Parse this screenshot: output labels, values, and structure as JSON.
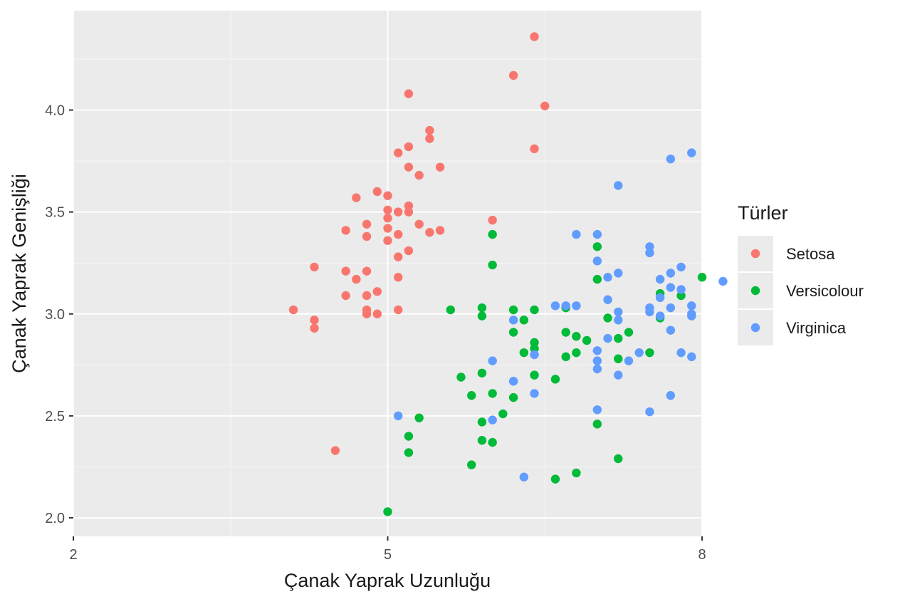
{
  "chart_data": {
    "type": "scatter",
    "xlabel": "Çanak Yaprak Uzunluğu",
    "ylabel": "Çanak Yaprak Genişliği",
    "xlim": [
      2,
      8
    ],
    "ylim": [
      1.95,
      4.45
    ],
    "x_ticks": [
      2,
      5,
      8
    ],
    "x_tick_labels": [
      "2",
      "5",
      "8"
    ],
    "y_ticks": [
      2.0,
      2.5,
      3.0,
      3.5,
      4.0
    ],
    "y_tick_labels": [
      "2.0",
      "2.5",
      "3.0",
      "3.5",
      "4.0"
    ],
    "grid": true,
    "legend": {
      "title": "Türler",
      "position": "right"
    },
    "series": [
      {
        "name": "Setosa",
        "color": "#f8766d",
        "points": [
          [
            6.4,
            4.36
          ],
          [
            6.2,
            4.17
          ],
          [
            5.2,
            4.08
          ],
          [
            6.5,
            4.02
          ],
          [
            5.4,
            3.9
          ],
          [
            5.4,
            3.86
          ],
          [
            6.4,
            3.81
          ],
          [
            5.2,
            3.82
          ],
          [
            5.1,
            3.79
          ],
          [
            5.2,
            3.72
          ],
          [
            5.5,
            3.72
          ],
          [
            5.3,
            3.68
          ],
          [
            4.9,
            3.6
          ],
          [
            5.0,
            3.58
          ],
          [
            4.7,
            3.57
          ],
          [
            5.2,
            3.53
          ],
          [
            5.0,
            3.51
          ],
          [
            5.1,
            3.5
          ],
          [
            5.2,
            3.5
          ],
          [
            5.0,
            3.47
          ],
          [
            6.0,
            3.46
          ],
          [
            5.3,
            3.44
          ],
          [
            4.8,
            3.44
          ],
          [
            5.0,
            3.42
          ],
          [
            4.6,
            3.41
          ],
          [
            5.5,
            3.41
          ],
          [
            5.4,
            3.4
          ],
          [
            5.1,
            3.39
          ],
          [
            4.8,
            3.38
          ],
          [
            5.0,
            3.36
          ],
          [
            5.2,
            3.31
          ],
          [
            5.1,
            3.28
          ],
          [
            4.3,
            3.23
          ],
          [
            4.6,
            3.21
          ],
          [
            4.8,
            3.21
          ],
          [
            4.7,
            3.17
          ],
          [
            5.1,
            3.18
          ],
          [
            4.9,
            3.11
          ],
          [
            4.8,
            3.09
          ],
          [
            4.6,
            3.09
          ],
          [
            4.1,
            3.02
          ],
          [
            4.8,
            3.02
          ],
          [
            5.1,
            3.02
          ],
          [
            4.3,
            2.97
          ],
          [
            4.8,
            3.0
          ],
          [
            4.9,
            3.0
          ],
          [
            4.3,
            2.93
          ],
          [
            4.5,
            2.33
          ]
        ]
      },
      {
        "name": "Versicolour",
        "color": "#00ba38",
        "points": [
          [
            6.0,
            3.39
          ],
          [
            7.0,
            3.33
          ],
          [
            6.0,
            3.24
          ],
          [
            7.0,
            3.17
          ],
          [
            8.0,
            3.18
          ],
          [
            7.6,
            3.1
          ],
          [
            7.8,
            3.09
          ],
          [
            5.6,
            3.02
          ],
          [
            5.9,
            3.03
          ],
          [
            6.2,
            3.02
          ],
          [
            6.4,
            3.02
          ],
          [
            6.7,
            3.03
          ],
          [
            5.9,
            2.99
          ],
          [
            6.3,
            2.97
          ],
          [
            7.1,
            2.98
          ],
          [
            7.6,
            2.98
          ],
          [
            6.2,
            2.91
          ],
          [
            6.7,
            2.91
          ],
          [
            7.3,
            2.91
          ],
          [
            6.8,
            2.89
          ],
          [
            6.9,
            2.87
          ],
          [
            6.4,
            2.86
          ],
          [
            7.2,
            2.88
          ],
          [
            6.4,
            2.83
          ],
          [
            6.8,
            2.81
          ],
          [
            7.5,
            2.81
          ],
          [
            6.3,
            2.81
          ],
          [
            6.7,
            2.79
          ],
          [
            7.2,
            2.78
          ],
          [
            5.7,
            2.69
          ],
          [
            5.9,
            2.71
          ],
          [
            6.4,
            2.7
          ],
          [
            6.6,
            2.68
          ],
          [
            6.0,
            2.61
          ],
          [
            6.2,
            2.59
          ],
          [
            5.8,
            2.6
          ],
          [
            6.1,
            2.51
          ],
          [
            5.9,
            2.47
          ],
          [
            7.0,
            2.46
          ],
          [
            5.3,
            2.49
          ],
          [
            5.9,
            2.38
          ],
          [
            6.0,
            2.37
          ],
          [
            5.2,
            2.4
          ],
          [
            5.2,
            2.32
          ],
          [
            7.2,
            2.29
          ],
          [
            5.8,
            2.26
          ],
          [
            6.8,
            2.22
          ],
          [
            6.6,
            2.19
          ],
          [
            5.0,
            2.03
          ]
        ]
      },
      {
        "name": "Virginica",
        "color": "#619cff",
        "points": [
          [
            7.9,
            3.79
          ],
          [
            7.7,
            3.76
          ],
          [
            7.2,
            3.63
          ],
          [
            6.8,
            3.39
          ],
          [
            7.0,
            3.39
          ],
          [
            7.5,
            3.33
          ],
          [
            7.5,
            3.3
          ],
          [
            7.0,
            3.26
          ],
          [
            7.8,
            3.23
          ],
          [
            7.7,
            3.2
          ],
          [
            7.2,
            3.2
          ],
          [
            7.1,
            3.18
          ],
          [
            7.6,
            3.17
          ],
          [
            8.2,
            3.16
          ],
          [
            7.7,
            3.13
          ],
          [
            7.8,
            3.12
          ],
          [
            7.6,
            3.08
          ],
          [
            7.1,
            3.07
          ],
          [
            6.7,
            3.04
          ],
          [
            6.8,
            3.04
          ],
          [
            6.6,
            3.04
          ],
          [
            7.5,
            3.03
          ],
          [
            7.7,
            3.03
          ],
          [
            7.9,
            3.04
          ],
          [
            7.2,
            3.01
          ],
          [
            7.9,
            3.0
          ],
          [
            7.5,
            3.01
          ],
          [
            7.6,
            2.99
          ],
          [
            7.9,
            2.99
          ],
          [
            6.2,
            2.97
          ],
          [
            7.2,
            2.97
          ],
          [
            7.7,
            2.92
          ],
          [
            7.1,
            2.88
          ],
          [
            7.0,
            2.82
          ],
          [
            7.4,
            2.81
          ],
          [
            7.8,
            2.81
          ],
          [
            6.4,
            2.8
          ],
          [
            7.9,
            2.79
          ],
          [
            7.0,
            2.77
          ],
          [
            6.0,
            2.77
          ],
          [
            7.3,
            2.77
          ],
          [
            7.0,
            2.73
          ],
          [
            7.2,
            2.7
          ],
          [
            6.2,
            2.67
          ],
          [
            6.2,
            2.67
          ],
          [
            6.4,
            2.61
          ],
          [
            7.7,
            2.6
          ],
          [
            7.0,
            2.53
          ],
          [
            7.5,
            2.52
          ],
          [
            5.1,
            2.5
          ],
          [
            6.0,
            2.48
          ],
          [
            6.3,
            2.2
          ]
        ]
      }
    ]
  }
}
